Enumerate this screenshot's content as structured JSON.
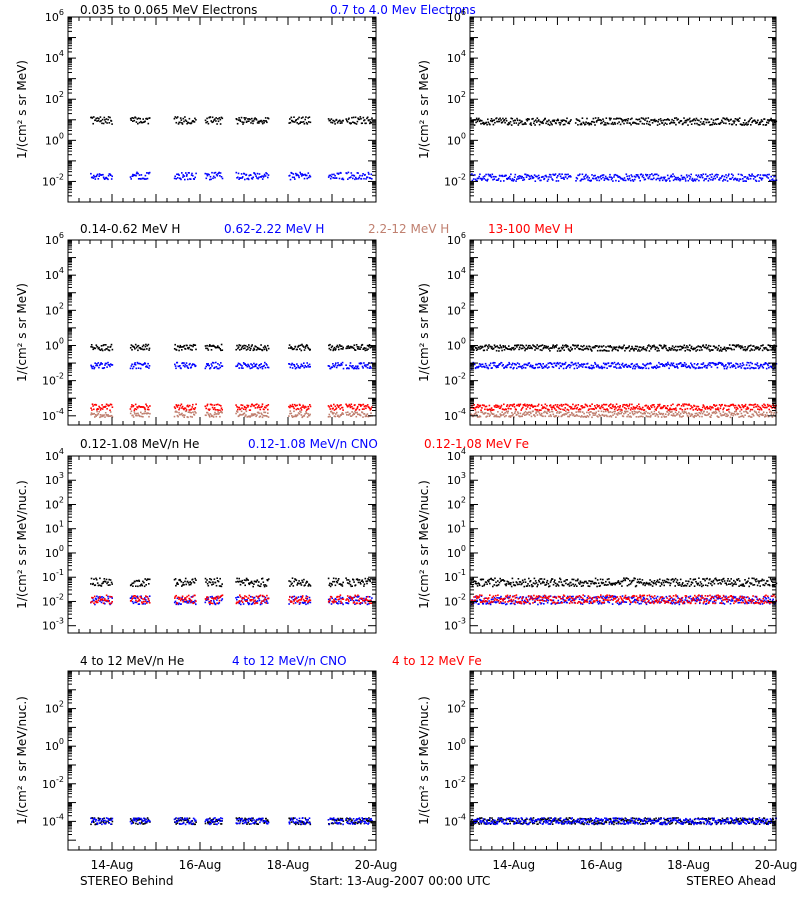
{
  "footer": {
    "left": "STEREO Behind",
    "center": "Start: 13-Aug-2007 00:00 UTC",
    "right": "STEREO Ahead"
  },
  "x_ticks": [
    "14-Aug",
    "16-Aug",
    "18-Aug",
    "20-Aug"
  ],
  "colors": {
    "black": "#000000",
    "blue": "#0000ff",
    "salmon": "#c08070",
    "red": "#ff0000"
  },
  "chart_data": [
    {
      "type": "scatter",
      "row": 1,
      "legend": [
        {
          "text": "0.035 to 0.065 MeV Electrons",
          "color": "#000000"
        },
        {
          "text": "0.7 to 4.0 Mev Electrons",
          "color": "#0000ff"
        }
      ],
      "ylabel": "1/(cm² s sr MeV)",
      "y_scale": "log",
      "ylim": [
        0.001,
        1000000
      ],
      "ytick_exponents": [
        -2,
        0,
        2,
        4,
        6
      ],
      "x_range": [
        "13-Aug-2007 00:00",
        "20-Aug-2007 00:00"
      ],
      "panels": [
        {
          "name": "STEREO Behind",
          "series": [
            {
              "color": "#000000",
              "typical": 9,
              "segments": [
                [
                  0.5,
                  1.0
                ],
                [
                  1.4,
                  1.85
                ],
                [
                  2.4,
                  2.9
                ],
                [
                  3.1,
                  3.5
                ],
                [
                  3.8,
                  4.55
                ],
                [
                  5.0,
                  5.5
                ],
                [
                  5.9,
                  6.25
                ],
                [
                  6.3,
                  6.9
                ]
              ]
            },
            {
              "color": "#0000ff",
              "typical": 0.018,
              "segments": [
                [
                  0.5,
                  1.0
                ],
                [
                  1.4,
                  1.85
                ],
                [
                  2.4,
                  2.9
                ],
                [
                  3.1,
                  3.5
                ],
                [
                  3.8,
                  4.55
                ],
                [
                  5.0,
                  5.5
                ],
                [
                  5.9,
                  6.25
                ],
                [
                  6.3,
                  6.9
                ]
              ]
            }
          ]
        },
        {
          "name": "STEREO Ahead",
          "series": [
            {
              "color": "#000000",
              "typical": 8,
              "segments": [
                [
                  0.0,
                  2.3
                ],
                [
                  2.4,
                  7.0
                ]
              ]
            },
            {
              "color": "#0000ff",
              "typical": 0.015,
              "segments": [
                [
                  0.0,
                  2.3
                ],
                [
                  2.4,
                  7.0
                ]
              ]
            }
          ]
        }
      ]
    },
    {
      "type": "scatter",
      "row": 2,
      "legend": [
        {
          "text": "0.14-0.62 MeV H",
          "color": "#000000"
        },
        {
          "text": "0.62-2.22 MeV H",
          "color": "#0000ff"
        },
        {
          "text": "2.2-12 MeV H",
          "color": "#c08070"
        },
        {
          "text": "13-100 MeV H",
          "color": "#ff0000"
        }
      ],
      "ylabel": "1/(cm² s sr MeV)",
      "y_scale": "log",
      "ylim": [
        3e-05,
        1000000
      ],
      "ytick_exponents": [
        -4,
        -2,
        0,
        2,
        4,
        6
      ],
      "panels": [
        {
          "name": "STEREO Behind",
          "series": [
            {
              "color": "#000000",
              "typical": 0.75,
              "segments": [
                [
                  0.5,
                  1.0
                ],
                [
                  1.4,
                  1.85
                ],
                [
                  2.4,
                  2.9
                ],
                [
                  3.1,
                  3.5
                ],
                [
                  3.8,
                  4.55
                ],
                [
                  5.0,
                  5.5
                ],
                [
                  5.9,
                  6.25
                ],
                [
                  6.3,
                  6.9
                ]
              ]
            },
            {
              "color": "#0000ff",
              "typical": 0.07,
              "segments": [
                [
                  0.5,
                  1.0
                ],
                [
                  1.4,
                  1.85
                ],
                [
                  2.4,
                  2.9
                ],
                [
                  3.1,
                  3.5
                ],
                [
                  3.8,
                  4.55
                ],
                [
                  5.0,
                  5.5
                ],
                [
                  5.9,
                  6.25
                ],
                [
                  6.3,
                  6.9
                ]
              ]
            },
            {
              "color": "#c08070",
              "typical": 0.00012,
              "segments": [
                [
                  0.5,
                  1.0
                ],
                [
                  1.4,
                  1.85
                ],
                [
                  2.4,
                  2.9
                ],
                [
                  3.1,
                  3.5
                ],
                [
                  3.8,
                  4.55
                ],
                [
                  5.0,
                  5.5
                ],
                [
                  5.9,
                  6.25
                ],
                [
                  6.3,
                  6.9
                ]
              ]
            },
            {
              "color": "#ff0000",
              "typical": 0.0003,
              "segments": [
                [
                  0.5,
                  1.0
                ],
                [
                  1.4,
                  1.85
                ],
                [
                  2.4,
                  2.9
                ],
                [
                  3.1,
                  3.5
                ],
                [
                  3.8,
                  4.55
                ],
                [
                  5.0,
                  5.5
                ],
                [
                  5.9,
                  6.25
                ],
                [
                  6.3,
                  6.9
                ]
              ]
            }
          ]
        },
        {
          "name": "STEREO Ahead",
          "series": [
            {
              "color": "#000000",
              "typical": 0.7,
              "segments": [
                [
                  0.0,
                  7.0
                ]
              ]
            },
            {
              "color": "#0000ff",
              "typical": 0.07,
              "segments": [
                [
                  0.0,
                  7.0
                ]
              ]
            },
            {
              "color": "#c08070",
              "typical": 0.00012,
              "segments": [
                [
                  0.0,
                  7.0
                ]
              ]
            },
            {
              "color": "#ff0000",
              "typical": 0.0003,
              "segments": [
                [
                  0.0,
                  7.0
                ]
              ]
            }
          ]
        }
      ]
    },
    {
      "type": "scatter",
      "row": 3,
      "legend": [
        {
          "text": "0.12-1.08 MeV/n He",
          "color": "#000000"
        },
        {
          "text": "0.12-1.08 MeV/n CNO",
          "color": "#0000ff"
        },
        {
          "text": "0.12-1.08 MeV Fe",
          "color": "#ff0000"
        }
      ],
      "ylabel": "1/(cm² s sr MeV/nuc.)",
      "y_scale": "log",
      "ylim": [
        0.0005,
        10000
      ],
      "ytick_exponents": [
        -3,
        -2,
        -1,
        0,
        1,
        2,
        3,
        4
      ],
      "panels": [
        {
          "name": "STEREO Behind",
          "series": [
            {
              "color": "#000000",
              "typical": 0.06,
              "segments": [
                [
                  0.5,
                  1.0
                ],
                [
                  1.4,
                  1.85
                ],
                [
                  2.4,
                  2.9
                ],
                [
                  3.1,
                  3.5
                ],
                [
                  3.8,
                  4.55
                ],
                [
                  5.0,
                  5.5
                ],
                [
                  5.9,
                  6.25
                ],
                [
                  6.3,
                  6.9
                ]
              ]
            },
            {
              "color": "#0000ff",
              "typical": 0.011,
              "segments": [
                [
                  0.5,
                  1.0
                ],
                [
                  1.4,
                  1.85
                ],
                [
                  2.4,
                  2.9
                ],
                [
                  3.1,
                  3.5
                ],
                [
                  3.8,
                  4.55
                ],
                [
                  5.0,
                  5.5
                ],
                [
                  5.9,
                  6.25
                ],
                [
                  6.3,
                  6.9
                ]
              ]
            },
            {
              "color": "#ff0000",
              "typical": 0.012,
              "segments": [
                [
                  0.5,
                  1.0
                ],
                [
                  1.4,
                  1.85
                ],
                [
                  2.4,
                  2.9
                ],
                [
                  3.1,
                  3.5
                ],
                [
                  3.8,
                  4.55
                ],
                [
                  5.0,
                  5.5
                ],
                [
                  5.9,
                  6.25
                ],
                [
                  6.3,
                  6.9
                ]
              ]
            }
          ]
        },
        {
          "name": "STEREO Ahead",
          "series": [
            {
              "color": "#000000",
              "typical": 0.06,
              "segments": [
                [
                  0.0,
                  7.0
                ]
              ]
            },
            {
              "color": "#0000ff",
              "typical": 0.011,
              "segments": [
                [
                  0.0,
                  7.0
                ]
              ]
            },
            {
              "color": "#ff0000",
              "typical": 0.012,
              "segments": [
                [
                  0.0,
                  7.0
                ]
              ]
            }
          ]
        }
      ]
    },
    {
      "type": "scatter",
      "row": 4,
      "legend": [
        {
          "text": "4 to 12 MeV/n He",
          "color": "#000000"
        },
        {
          "text": "4 to 12 MeV/n CNO",
          "color": "#0000ff"
        },
        {
          "text": "4 to 12 MeV Fe",
          "color": "#ff0000"
        }
      ],
      "ylabel": "1/(cm² s sr MeV/nuc.)",
      "y_scale": "log",
      "ylim": [
        3e-06,
        10000
      ],
      "ytick_exponents": [
        -4,
        -2,
        0,
        2
      ],
      "panels": [
        {
          "name": "STEREO Behind",
          "series": [
            {
              "color": "#000000",
              "typical": 0.0001,
              "segments": [
                [
                  0.5,
                  1.0
                ],
                [
                  1.4,
                  1.85
                ],
                [
                  2.4,
                  2.9
                ],
                [
                  3.1,
                  3.5
                ],
                [
                  3.8,
                  4.55
                ],
                [
                  5.0,
                  5.5
                ],
                [
                  5.9,
                  6.25
                ],
                [
                  6.3,
                  6.9
                ]
              ]
            },
            {
              "color": "#0000ff",
              "typical": 0.0001,
              "segments": [
                [
                  0.5,
                  1.0
                ],
                [
                  1.4,
                  1.85
                ],
                [
                  2.4,
                  2.9
                ],
                [
                  3.1,
                  3.5
                ],
                [
                  3.8,
                  4.55
                ],
                [
                  5.0,
                  5.5
                ],
                [
                  5.9,
                  6.25
                ],
                [
                  6.3,
                  6.9
                ]
              ]
            }
          ]
        },
        {
          "name": "STEREO Ahead",
          "series": [
            {
              "color": "#000000",
              "typical": 0.0001,
              "segments": [
                [
                  0.0,
                  7.0
                ]
              ]
            },
            {
              "color": "#0000ff",
              "typical": 0.0001,
              "segments": [
                [
                  0.0,
                  7.0
                ]
              ]
            }
          ]
        }
      ]
    }
  ]
}
